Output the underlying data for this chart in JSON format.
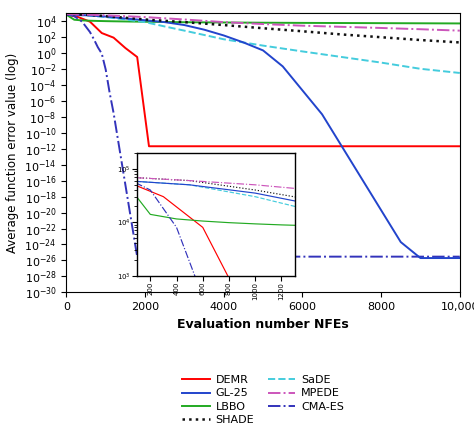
{
  "xlabel": "Evaluation number NFEs",
  "ylabel": "Average function error value (log)",
  "xlim": [
    0,
    10000
  ],
  "ylim": [
    1e-30,
    100000.0
  ],
  "x_ticks": [
    0,
    2000,
    4000,
    6000,
    8000,
    10000
  ],
  "x_tick_labels": [
    "0",
    "2000",
    "4000",
    "6000",
    "8000",
    "10,000"
  ],
  "lines": {
    "DEMR": {
      "color": "#ff0000",
      "linestyle": "-",
      "linewidth": 1.4,
      "x": [
        0,
        300,
        600,
        900,
        1200,
        1500,
        1800,
        2100,
        2400,
        2700,
        3000,
        4000,
        5000,
        6000,
        7000,
        8000,
        9000,
        10000
      ],
      "y": [
        60000.0,
        30000.0,
        8000.0,
        300.0,
        80.0,
        4.0,
        0.3,
        2e-12,
        2e-12,
        2e-12,
        2e-12,
        2e-12,
        2e-12,
        2e-12,
        2e-12,
        2e-12,
        2e-12,
        2e-12
      ]
    },
    "LBBO": {
      "color": "#22aa22",
      "linestyle": "-",
      "linewidth": 1.4,
      "x": [
        0,
        200,
        400,
        600,
        800,
        1000,
        1200,
        1400,
        1600,
        1800,
        2000,
        3000,
        4000,
        5000,
        6000,
        7000,
        8000,
        9000,
        10000
      ],
      "y": [
        60000.0,
        14000.0,
        11500.0,
        10500.0,
        9800.0,
        9300.0,
        8900.0,
        8600.0,
        8300.0,
        8100.0,
        7800.0,
        6800.0,
        6300.0,
        5900.0,
        5600.0,
        5400.0,
        5200.0,
        5000.0,
        4800.0
      ]
    },
    "SaDE": {
      "color": "#44ccdd",
      "linestyle": "--",
      "linewidth": 1.4,
      "x": [
        0,
        500,
        1000,
        1500,
        2000,
        2500,
        3000,
        4000,
        5000,
        6000,
        7000,
        8000,
        9000,
        10000
      ],
      "y": [
        60000.0,
        50000.0,
        30000.0,
        15000.0,
        7000.0,
        2000.0,
        600.0,
        50.0,
        8.0,
        1.5,
        0.3,
        0.06,
        0.01,
        0.003
      ]
    },
    "CMA-ES": {
      "color": "#3333bb",
      "linestyle": "-.",
      "linewidth": 1.4,
      "x": [
        0,
        200,
        400,
        600,
        700,
        800,
        900,
        1000,
        1100,
        1200,
        1400,
        1600,
        1800,
        2000,
        2500,
        3000,
        4000,
        5000,
        6000,
        7000,
        8000,
        9000,
        10000
      ],
      "y": [
        70000.0,
        40000.0,
        8000.0,
        400.0,
        50.0,
        5.0,
        0.8,
        0.008,
        1e-05,
        3e-08,
        3e-14,
        3e-20,
        3e-26,
        3e-26,
        3e-26,
        3e-26,
        3e-26,
        3e-26,
        3e-26,
        3e-26,
        3e-26,
        3e-26,
        3e-26
      ]
    },
    "GL-25": {
      "color": "#2244cc",
      "linestyle": "-",
      "linewidth": 1.4,
      "x": [
        0,
        500,
        1000,
        1500,
        2000,
        2500,
        3000,
        3500,
        4000,
        4500,
        5000,
        5500,
        6000,
        6500,
        7000,
        7500,
        8000,
        8500,
        9000,
        9500,
        10000
      ],
      "y": [
        60000.0,
        50000.0,
        35000.0,
        20000.0,
        12000.0,
        7000.0,
        3000.0,
        800.0,
        150.0,
        20.0,
        2.0,
        0.02,
        2e-05,
        2e-08,
        2e-12,
        2e-16,
        2e-20,
        2e-24,
        2e-26,
        2e-26,
        2e-26
      ]
    },
    "SHADE": {
      "color": "#111111",
      "linestyle": ":",
      "linewidth": 1.8,
      "x": [
        0,
        500,
        1000,
        2000,
        3000,
        4000,
        5000,
        6000,
        7000,
        8000,
        9000,
        10000
      ],
      "y": [
        70000.0,
        60000.0,
        40000.0,
        15000.0,
        7000.0,
        3000.0,
        1200.0,
        500.0,
        200.0,
        90.0,
        40.0,
        20.0
      ]
    },
    "MPEDE": {
      "color": "#cc55bb",
      "linestyle": "-.",
      "linewidth": 1.4,
      "x": [
        0,
        500,
        1000,
        2000,
        3000,
        4000,
        5000,
        6000,
        7000,
        8000,
        9000,
        10000
      ],
      "y": [
        70000.0,
        60000.0,
        50000.0,
        30000.0,
        15000.0,
        7000.0,
        4000.0,
        2500.0,
        1800.0,
        1300.0,
        900.0,
        600.0
      ]
    }
  },
  "inset": {
    "xlim": [
      100,
      1300
    ],
    "ylim": [
      1000.0,
      200000.0
    ],
    "x_ticks": [
      200,
      400,
      600,
      800,
      1000,
      1200
    ],
    "bounds": [
      0.18,
      0.06,
      0.4,
      0.44
    ]
  },
  "legend_col1": [
    "DEMR",
    "LBBO",
    "SaDE",
    "CMA-ES"
  ],
  "legend_col2": [
    "GL-25",
    "SHADE",
    "MPEDE"
  ]
}
